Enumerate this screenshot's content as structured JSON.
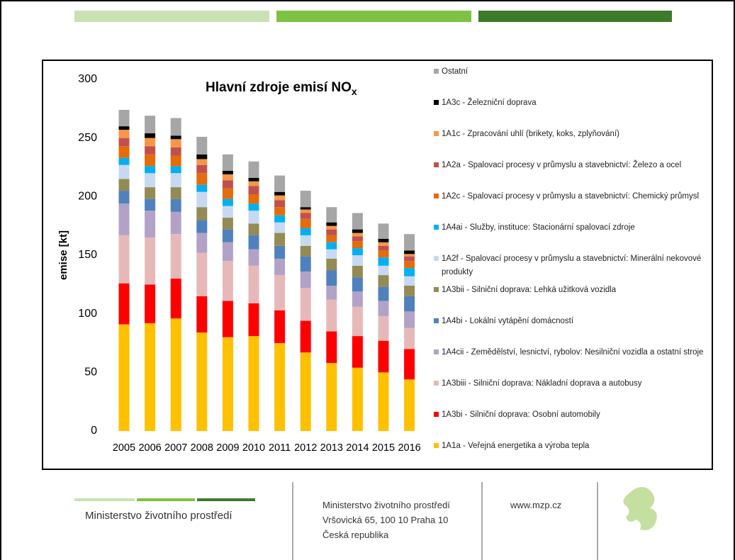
{
  "chart_data": {
    "type": "stacked_bar",
    "title": "Hlavní zdroje emisí NO",
    "title_subscript": "x",
    "y_label": "emise [kt]",
    "categories": [
      "2005",
      "2006",
      "2007",
      "2008",
      "2009",
      "2010",
      "2011",
      "2012",
      "2013",
      "2014",
      "2015",
      "2016"
    ],
    "ylim": [
      0,
      300
    ],
    "yticks": [
      0,
      50,
      100,
      150,
      200,
      250,
      300
    ],
    "series": [
      {
        "name": "1A1a - Veřejná energetika a výroba tepla",
        "color": "#FFC000",
        "values": [
          91,
          92,
          96,
          84,
          80,
          81,
          75,
          67,
          58,
          54,
          50,
          44
        ]
      },
      {
        "name": "1A3bi - Silniční doprava: Osobní automobily",
        "color": "#FF0000",
        "values": [
          35,
          33,
          34,
          31,
          31,
          28,
          28,
          27,
          27,
          27,
          27,
          26
        ]
      },
      {
        "name": "1A3biii - Silniční doprava: Nákladní doprava a autobusy",
        "color": "#E6B9B8",
        "values": [
          41,
          40,
          38,
          37,
          34,
          32,
          30,
          28,
          27,
          25,
          21,
          18
        ]
      },
      {
        "name": "1A4cii - Zemědělství, lesnictví, rybolov: Nesilniční vozidla a ostatní stroje",
        "color": "#B3A2C7",
        "values": [
          27,
          23,
          19,
          17,
          16,
          14,
          14,
          14,
          12,
          13,
          13,
          14
        ]
      },
      {
        "name": "1A4bi - Lokální vytápění domácností",
        "color": "#4F81BD",
        "values": [
          11,
          10,
          11,
          11,
          11,
          12,
          11,
          13,
          13,
          12,
          12,
          13
        ]
      },
      {
        "name": "1A3bii - Silniční doprava: Lehká užitková vozidla",
        "color": "#948A54",
        "values": [
          10,
          10,
          10,
          11,
          10,
          10,
          11,
          9,
          10,
          10,
          10,
          9
        ]
      },
      {
        "name": "1A2f - Spalovací procesy v průmyslu a stavebnictví: Minerální nekovové produkty",
        "color": "#C6D9F1",
        "values": [
          12,
          12,
          12,
          13,
          10,
          11,
          9,
          9,
          8,
          9,
          8,
          8
        ]
      },
      {
        "name": "1A4ai - Služby, instituce: Stacionární spalovací zdroje",
        "color": "#00B0F0",
        "values": [
          6,
          6,
          6,
          6,
          6,
          6,
          6,
          6,
          6,
          6,
          7,
          7
        ]
      },
      {
        "name": "1A2c - Spalovací procesy v průmyslu a stavebnictví: Chemický průmysl",
        "color": "#E46C0A",
        "values": [
          10,
          10,
          9,
          10,
          9,
          8,
          7,
          8,
          6,
          6,
          6,
          6
        ]
      },
      {
        "name": "1A2a - Spalovací procesy v průmyslu a stavebnictví: Železo a ocel",
        "color": "#C0504D",
        "values": [
          7,
          7,
          7,
          7,
          7,
          7,
          6,
          5,
          5,
          4,
          4,
          4
        ]
      },
      {
        "name": "1A1c - Zpracování uhlí (brikety, koks, zplyňování)",
        "color": "#F79646",
        "values": [
          7,
          7,
          7,
          5,
          5,
          4,
          4,
          3,
          3,
          3,
          3,
          2
        ]
      },
      {
        "name": "1A3c - Železniční doprava",
        "color": "#000000",
        "values": [
          3,
          4,
          3,
          4,
          3,
          3,
          3,
          2,
          3,
          3,
          3,
          3
        ]
      },
      {
        "name": "Ostatní",
        "color": "#A6A6A6",
        "values": [
          14,
          15,
          15,
          15,
          14,
          14,
          14,
          14,
          13,
          14,
          13,
          14
        ]
      }
    ]
  },
  "footer": {
    "ministry": "Ministerstvo životního prostředí",
    "address": [
      "Ministerstvo životního prostředí",
      "Vršovická 65, 100 10  Praha 10",
      "Česká republika"
    ],
    "web": "www.mzp.cz"
  }
}
